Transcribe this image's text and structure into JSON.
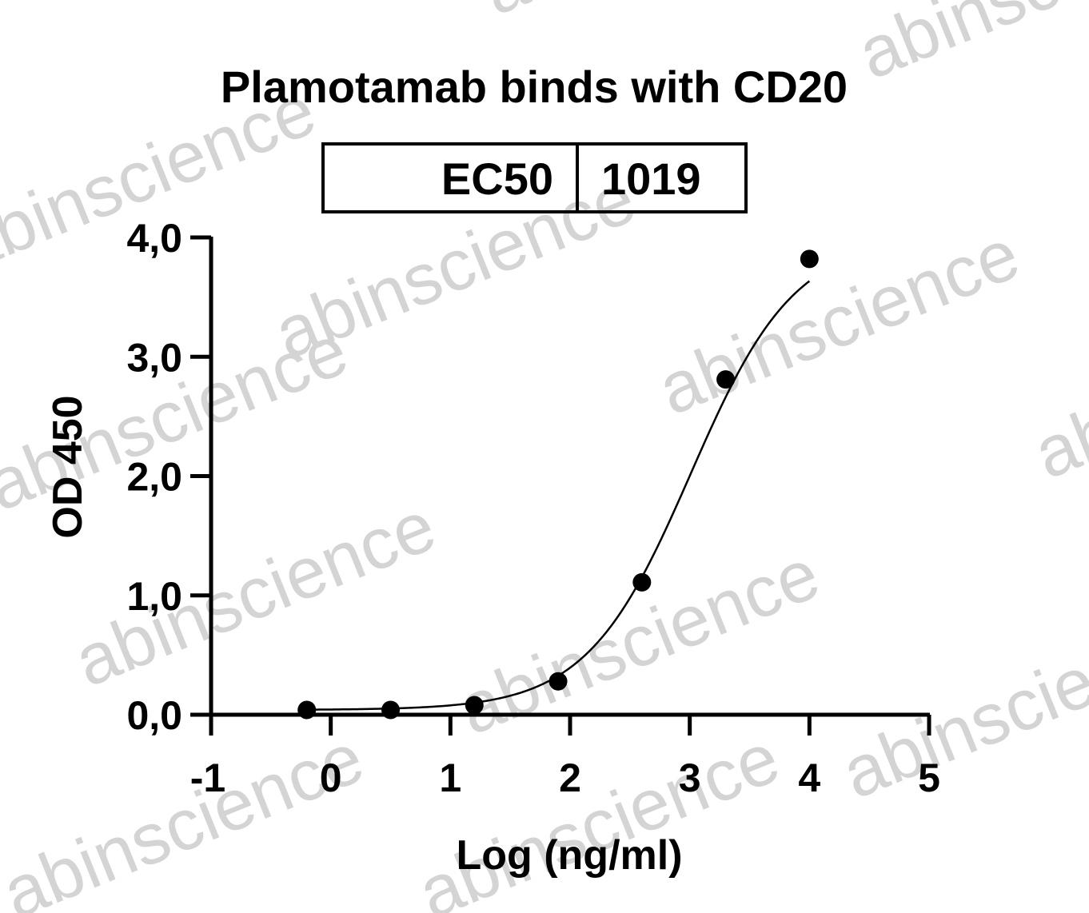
{
  "watermark_text": "abinscience",
  "chart_data": {
    "type": "scatter",
    "title": "Plamotamab binds with CD20",
    "xlabel": "Log (ng/ml)",
    "ylabel": "OD 450",
    "xlim": [
      -1,
      5
    ],
    "ylim": [
      0,
      4
    ],
    "xticks": [
      -1,
      0,
      1,
      2,
      3,
      4,
      5
    ],
    "xtick_labels": [
      "-1",
      "0",
      "1",
      "2",
      "3",
      "4",
      "5"
    ],
    "yticks": [
      0,
      1,
      2,
      3,
      4
    ],
    "ytick_labels": [
      "0,0",
      "1,0",
      "2,0",
      "3,0",
      "4,0"
    ],
    "points": {
      "x": [
        -0.2,
        0.5,
        1.2,
        1.9,
        2.6,
        3.3,
        4.0
      ],
      "y": [
        0.04,
        0.04,
        0.08,
        0.28,
        1.11,
        2.81,
        3.82
      ]
    },
    "fit": {
      "model": "4PL",
      "bottom": 0.04,
      "top": 4.0,
      "logEC50": 3.008,
      "hill": 1.0
    },
    "grid": false,
    "legend": "none",
    "ec50_table": {
      "label": "EC50",
      "value": "1019"
    },
    "colors": {
      "points": "#000000",
      "line": "#000000",
      "watermark": "#d4d4d4"
    }
  }
}
